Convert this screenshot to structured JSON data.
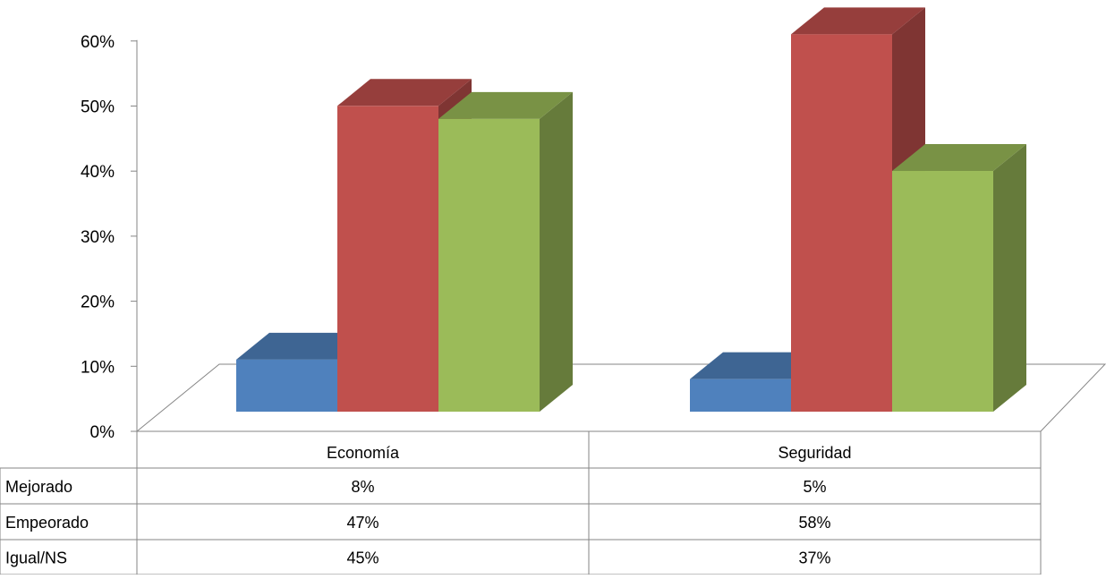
{
  "chart_data": {
    "type": "bar",
    "categories": [
      "Economía",
      "Seguridad"
    ],
    "series": [
      {
        "name": "Mejorado",
        "values": [
          8,
          5
        ],
        "color": "#4F81BD"
      },
      {
        "name": "Empeorado",
        "values": [
          47,
          58
        ],
        "color": "#C0504D"
      },
      {
        "name": "Igual/NS",
        "values": [
          45,
          37
        ],
        "color": "#9BBB59"
      }
    ],
    "value_unit": "%",
    "ylim": [
      0,
      60
    ],
    "yticks": [
      "0%",
      "10%",
      "20%",
      "30%",
      "40%",
      "50%",
      "60%"
    ],
    "style": "3d-clustered-column",
    "data_table": {
      "rows": [
        {
          "label": "Mejorado",
          "cells": [
            "8%",
            "5%"
          ]
        },
        {
          "label": "Empeorado",
          "cells": [
            "47%",
            "58%"
          ]
        },
        {
          "label": "Igual/NS",
          "cells": [
            "45%",
            "37%"
          ]
        }
      ]
    },
    "grid": false,
    "legend": "data-table"
  }
}
